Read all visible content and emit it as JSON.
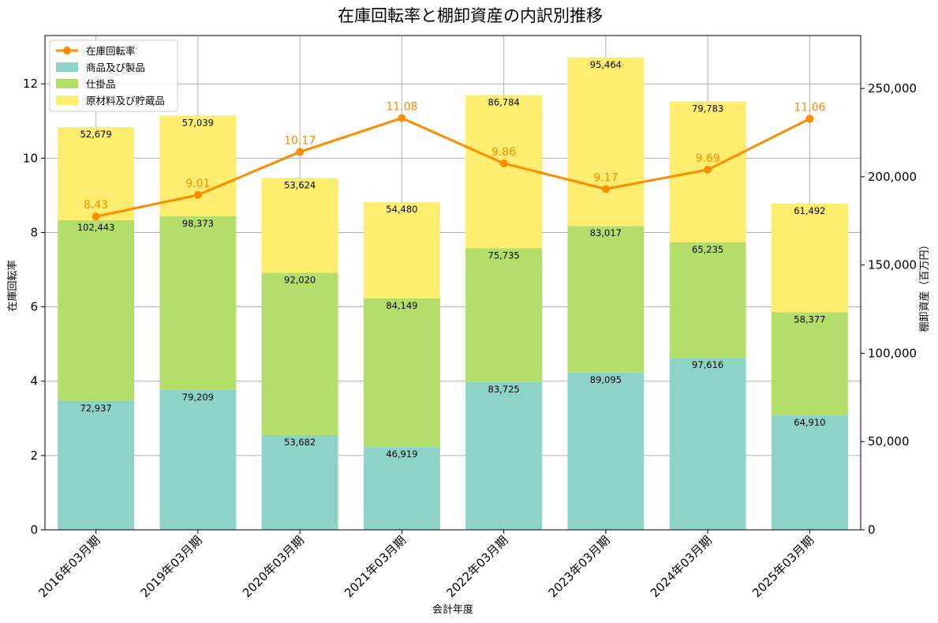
{
  "chart_data": {
    "type": "bar",
    "title": "在庫回転率と棚卸資産の内訳別推移",
    "xlabel": "会計年度",
    "ylabel_left": "在庫回転率",
    "ylabel_right": "棚卸資産（百万円）",
    "categories": [
      "2016年03月期",
      "2019年03月期",
      "2020年03月期",
      "2021年03月期",
      "2022年03月期",
      "2023年03月期",
      "2024年03月期",
      "2025年03月期"
    ],
    "ylim_left": [
      0,
      13.3
    ],
    "yticks_left": [
      0,
      2,
      4,
      6,
      8,
      10,
      12
    ],
    "ylim_right": [
      0,
      280000
    ],
    "yticks_right": [
      0,
      50000,
      100000,
      150000,
      200000,
      250000
    ],
    "grid": true,
    "legend_position": "top-left",
    "series": [
      {
        "name": "商品及び製品",
        "kind": "stacked-bar",
        "axis": "right",
        "color": "#8dd3c7",
        "values": [
          72937,
          79209,
          53682,
          46919,
          83725,
          89095,
          97616,
          64910
        ],
        "labels": [
          "72,937",
          "79,209",
          "53,682",
          "46,919",
          "83,725",
          "89,095",
          "97,616",
          "64,910"
        ]
      },
      {
        "name": "仕掛品",
        "kind": "stacked-bar",
        "axis": "right",
        "color": "#b3de69",
        "values": [
          102443,
          98373,
          92020,
          84149,
          75735,
          83017,
          65235,
          58377
        ],
        "labels": [
          "102,443",
          "98,373",
          "92,020",
          "84,149",
          "75,735",
          "83,017",
          "65,235",
          "58,377"
        ]
      },
      {
        "name": "原材料及び貯蔵品",
        "kind": "stacked-bar",
        "axis": "right",
        "color": "#ffed6f",
        "values": [
          52679,
          57039,
          53624,
          54480,
          86784,
          95464,
          79783,
          61492
        ],
        "labels": [
          "52,679",
          "57,039",
          "53,624",
          "54,480",
          "86,784",
          "95,464",
          "79,783",
          "61,492"
        ]
      },
      {
        "name": "在庫回転率",
        "kind": "line",
        "axis": "left",
        "color": "#ff8c00",
        "values": [
          8.43,
          9.01,
          10.17,
          11.08,
          9.86,
          9.17,
          9.69,
          11.06
        ],
        "labels": [
          "8.43",
          "9.01",
          "10.17",
          "11.08",
          "9.86",
          "9.17",
          "9.69",
          "11.06"
        ]
      }
    ],
    "yticks_left_labels": [
      "0",
      "2",
      "4",
      "6",
      "8",
      "10",
      "12"
    ],
    "yticks_right_labels": [
      "0",
      "50,000",
      "100,000",
      "150,000",
      "200,000",
      "250,000"
    ]
  }
}
